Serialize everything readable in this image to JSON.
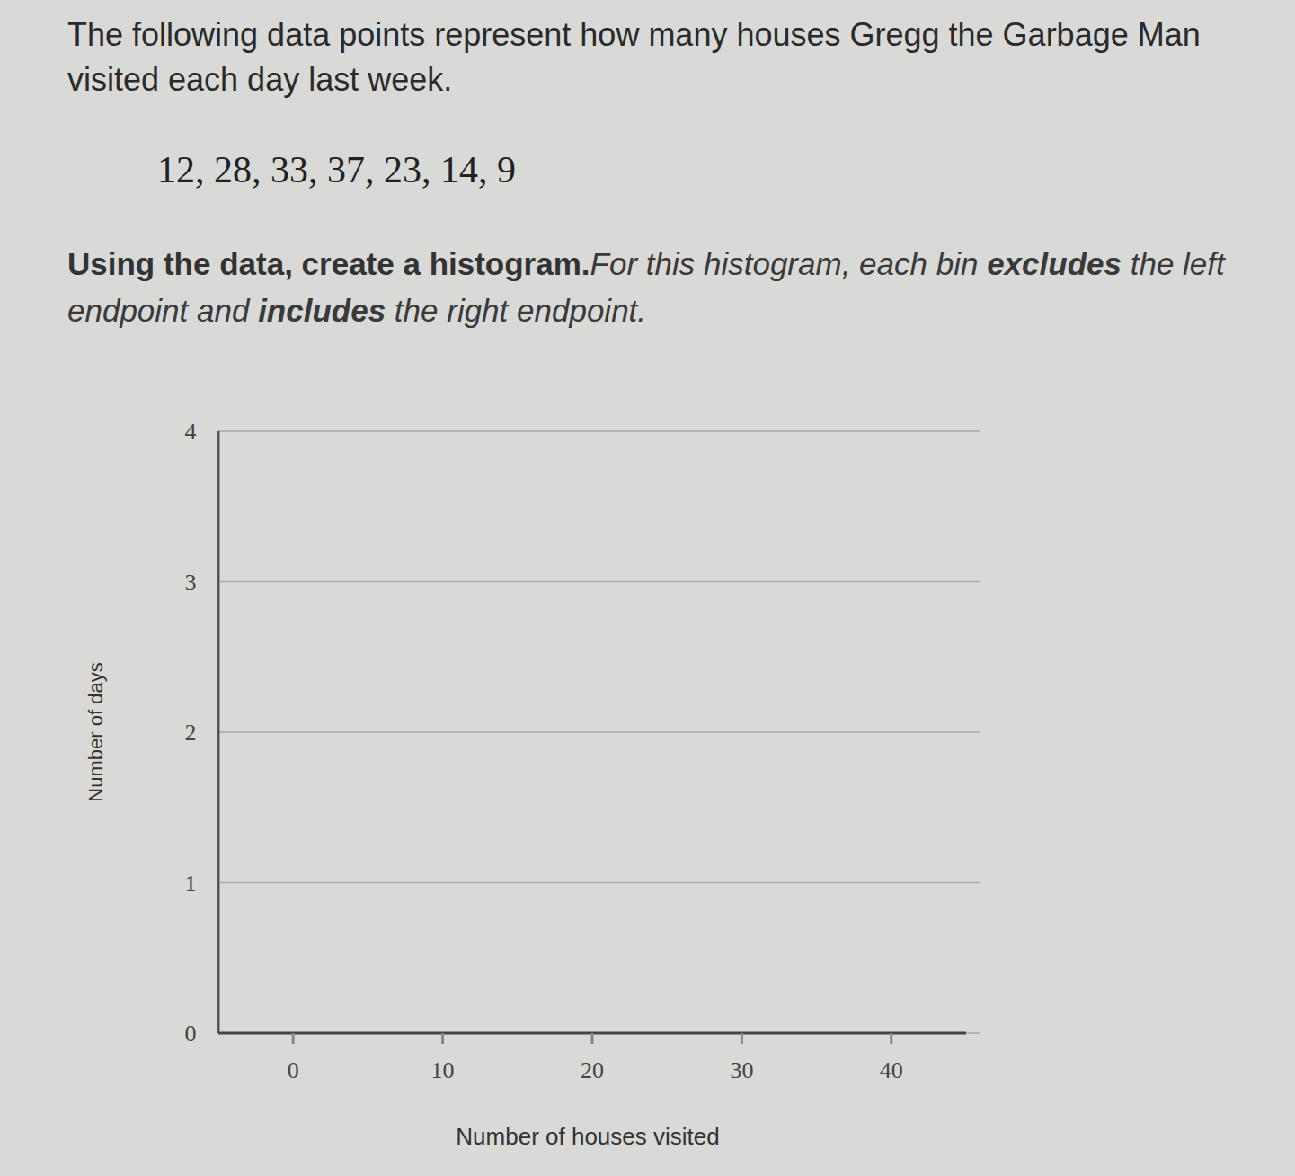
{
  "chart_data": {
    "type": "histogram",
    "title": "The following data points represent how many houses Gregg the Garbage Man visited each day last week.",
    "subtitle": "12, 28, 33, 37, 23, 14, 9",
    "annotations": [
      "Using the data, create a histogram.",
      "For this histogram, each bin ",
      "excludes",
      " the left endpoint and ",
      "includes",
      " the right endpoint."
    ],
    "x_label": "Number of houses visited",
    "y_label": "Number of days",
    "bins": [
      0,
      10,
      20,
      30,
      40
    ],
    "values": [
      0,
      0,
      0,
      0
    ],
    "color": "#5cb85c",
    "xlim": [
      -5,
      45
    ],
    "xticks": [
      0,
      10,
      20,
      30,
      40
    ],
    "ylim": [
      0,
      4
    ],
    "yticks": [
      0,
      1,
      2,
      3,
      4
    ],
    "grid": true
  }
}
